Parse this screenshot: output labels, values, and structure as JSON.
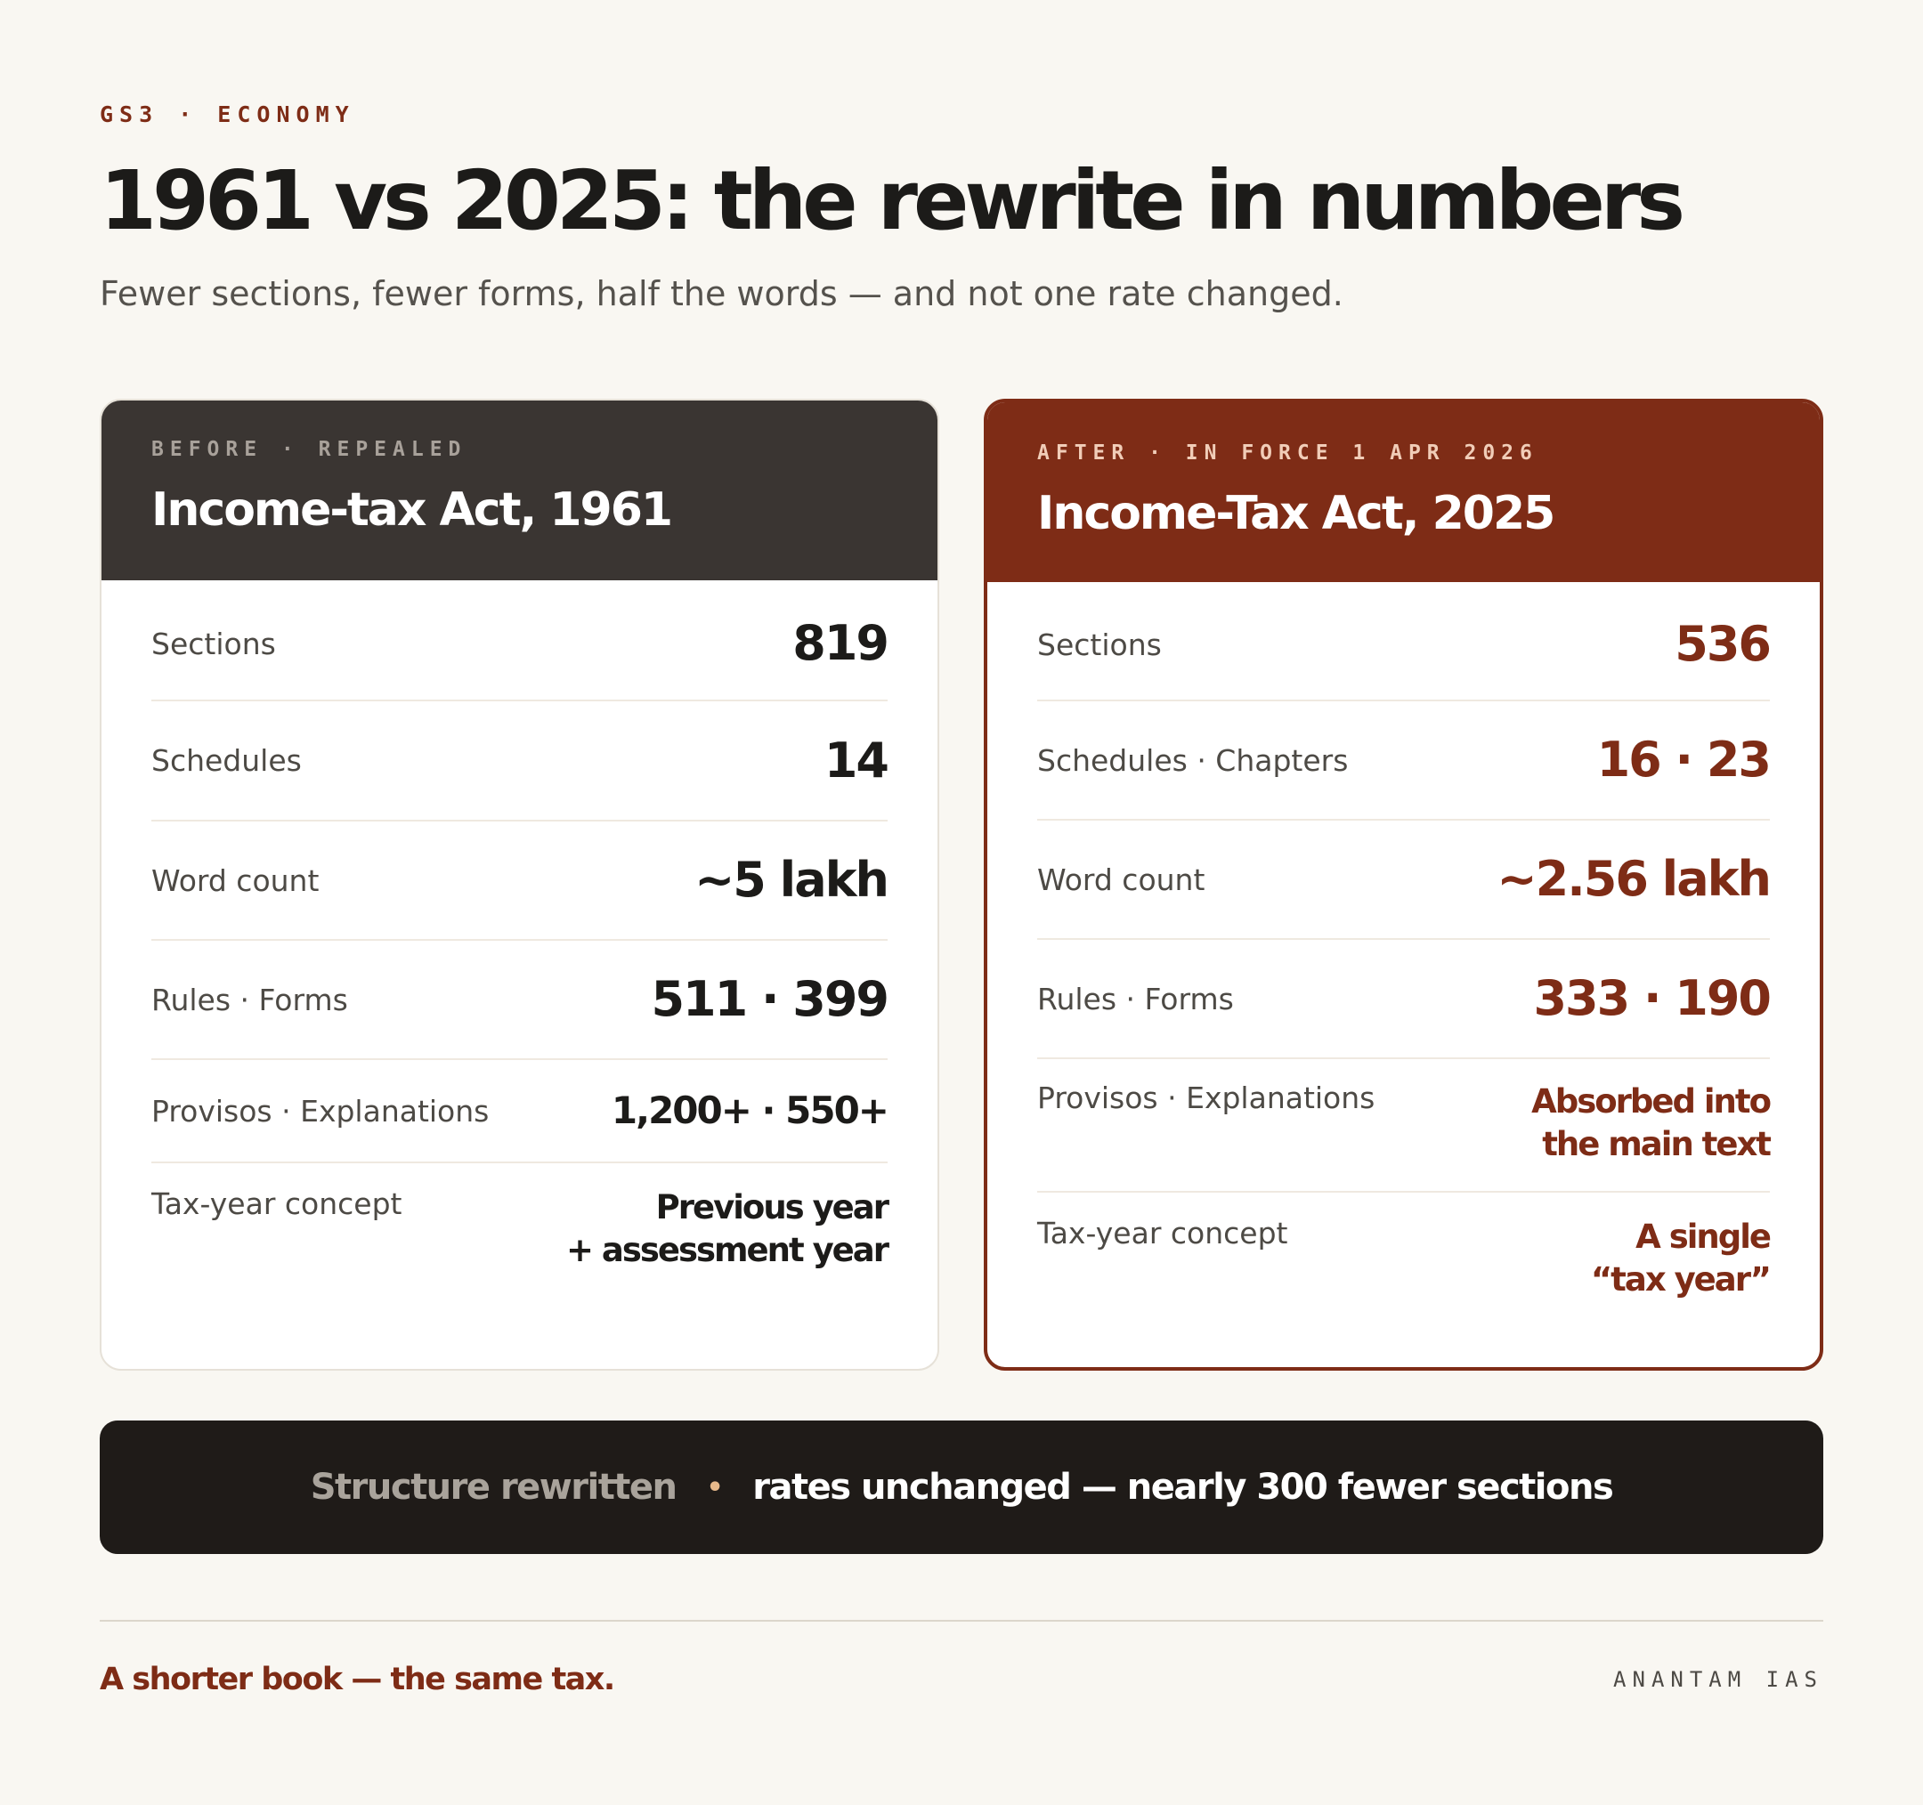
{
  "kicker": "GS3 · ECONOMY",
  "title": "1961 vs 2025: the rewrite in numbers",
  "subtitle": "Fewer sections, fewer forms, half the words — and not one rate changed.",
  "before": {
    "kicker": "BEFORE · REPEALED",
    "title": "Income-tax Act, 1961",
    "rows": [
      {
        "label": "Sections",
        "value": "819"
      },
      {
        "label": "Schedules",
        "value": "14"
      },
      {
        "label": "Word count",
        "value": "~5 lakh"
      },
      {
        "label": "Rules · Forms",
        "value": "511 · 399"
      },
      {
        "label": "Provisos · Explanations",
        "value": "1,200+ · 550+"
      },
      {
        "label": "Tax-year concept",
        "value_line1": "Previous year",
        "value_line2": "+ assessment year"
      }
    ]
  },
  "after": {
    "kicker": "AFTER · IN FORCE 1 APR 2026",
    "title": "Income-Tax Act, 2025",
    "rows": [
      {
        "label": "Sections",
        "value": "536"
      },
      {
        "label": "Schedules · Chapters",
        "value": "16 · 23"
      },
      {
        "label": "Word count",
        "value": "~2.56 lakh"
      },
      {
        "label": "Rules · Forms",
        "value": "333 · 190"
      },
      {
        "label": "Provisos · Explanations",
        "value_line1": "Absorbed into",
        "value_line2": "the main text"
      },
      {
        "label": "Tax-year concept",
        "value_line1": "A single",
        "value_line2": "“tax year”"
      }
    ]
  },
  "banner": {
    "muted": "Structure rewritten",
    "dot": "•",
    "strong": "rates unchanged — nearly 300 fewer sections"
  },
  "footer": {
    "tagline": "A shorter book — the same tax.",
    "brand": "ANANTAM IAS"
  },
  "colors": {
    "background": "#f9f7f2",
    "accent": "#7e2c16",
    "before_header": "#3a3532",
    "banner": "#1f1b18"
  }
}
